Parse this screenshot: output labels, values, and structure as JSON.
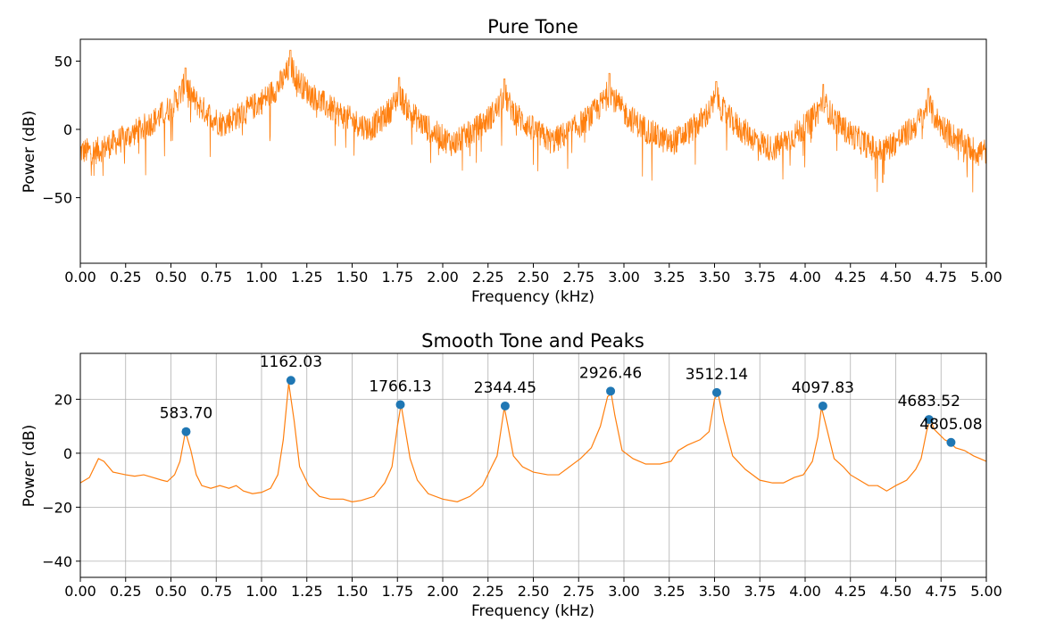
{
  "chart_data": [
    {
      "type": "line",
      "title": "Pure Tone",
      "xlabel": "Frequency (kHz)",
      "ylabel": "Power (dB)",
      "xlim": [
        0,
        5
      ],
      "ylim": [
        -98,
        66
      ],
      "xticks": [
        "0.00",
        "0.25",
        "0.50",
        "0.75",
        "1.00",
        "1.25",
        "1.50",
        "1.75",
        "2.00",
        "2.25",
        "2.50",
        "2.75",
        "3.00",
        "3.25",
        "3.50",
        "3.75",
        "4.00",
        "4.25",
        "4.50",
        "4.75",
        "5.00"
      ],
      "yticks": [
        50,
        0,
        -50
      ],
      "grid": false,
      "series_color": "#ff7f0e",
      "peaks": [
        {
          "x": 0.58,
          "y": 45
        },
        {
          "x": 1.16,
          "y": 58
        },
        {
          "x": 1.76,
          "y": 38
        },
        {
          "x": 2.34,
          "y": 37
        },
        {
          "x": 2.92,
          "y": 41
        },
        {
          "x": 3.51,
          "y": 35
        },
        {
          "x": 4.1,
          "y": 33
        },
        {
          "x": 4.68,
          "y": 30
        }
      ]
    },
    {
      "type": "line",
      "title": "Smooth Tone and Peaks",
      "xlabel": "Frequency (kHz)",
      "ylabel": "Power (dB)",
      "xlim": [
        0,
        5
      ],
      "ylim": [
        -46,
        37
      ],
      "xticks": [
        "0.00",
        "0.25",
        "0.50",
        "0.75",
        "1.00",
        "1.25",
        "1.50",
        "1.75",
        "2.00",
        "2.25",
        "2.50",
        "2.75",
        "3.00",
        "3.25",
        "3.50",
        "3.75",
        "4.00",
        "4.25",
        "4.50",
        "4.75",
        "5.00"
      ],
      "yticks": [
        20,
        0,
        -20,
        -40
      ],
      "grid": true,
      "series_color": "#ff7f0e",
      "marker_color": "#1f77b4",
      "curve": [
        [
          0.0,
          -11
        ],
        [
          0.05,
          -9
        ],
        [
          0.1,
          -2
        ],
        [
          0.13,
          -3
        ],
        [
          0.18,
          -7
        ],
        [
          0.25,
          -8
        ],
        [
          0.3,
          -8.5
        ],
        [
          0.35,
          -8
        ],
        [
          0.4,
          -9
        ],
        [
          0.45,
          -10
        ],
        [
          0.48,
          -10.5
        ],
        [
          0.52,
          -8
        ],
        [
          0.55,
          -3
        ],
        [
          0.58,
          8
        ],
        [
          0.61,
          1
        ],
        [
          0.64,
          -8
        ],
        [
          0.67,
          -12
        ],
        [
          0.72,
          -13
        ],
        [
          0.77,
          -12
        ],
        [
          0.82,
          -13
        ],
        [
          0.86,
          -12
        ],
        [
          0.9,
          -14
        ],
        [
          0.95,
          -15
        ],
        [
          1.0,
          -14.5
        ],
        [
          1.05,
          -13
        ],
        [
          1.09,
          -8
        ],
        [
          1.12,
          5
        ],
        [
          1.15,
          26
        ],
        [
          1.18,
          12
        ],
        [
          1.21,
          -5
        ],
        [
          1.26,
          -12
        ],
        [
          1.32,
          -16
        ],
        [
          1.38,
          -17
        ],
        [
          1.45,
          -17
        ],
        [
          1.5,
          -18
        ],
        [
          1.55,
          -17.5
        ],
        [
          1.62,
          -16
        ],
        [
          1.68,
          -11
        ],
        [
          1.72,
          -5
        ],
        [
          1.75,
          10
        ],
        [
          1.77,
          18
        ],
        [
          1.79,
          10
        ],
        [
          1.82,
          -2
        ],
        [
          1.86,
          -10
        ],
        [
          1.92,
          -15
        ],
        [
          2.0,
          -17
        ],
        [
          2.08,
          -18
        ],
        [
          2.15,
          -16
        ],
        [
          2.22,
          -12
        ],
        [
          2.27,
          -5
        ],
        [
          2.3,
          -1
        ],
        [
          2.32,
          8
        ],
        [
          2.34,
          17
        ],
        [
          2.36,
          10
        ],
        [
          2.39,
          -1
        ],
        [
          2.44,
          -5
        ],
        [
          2.5,
          -7
        ],
        [
          2.58,
          -8
        ],
        [
          2.64,
          -8
        ],
        [
          2.7,
          -5
        ],
        [
          2.76,
          -2
        ],
        [
          2.82,
          2
        ],
        [
          2.87,
          10
        ],
        [
          2.91,
          21
        ],
        [
          2.93,
          22
        ],
        [
          2.95,
          14
        ],
        [
          2.99,
          1
        ],
        [
          3.05,
          -2
        ],
        [
          3.12,
          -4
        ],
        [
          3.2,
          -4
        ],
        [
          3.26,
          -3
        ],
        [
          3.3,
          1
        ],
        [
          3.35,
          3
        ],
        [
          3.42,
          5
        ],
        [
          3.47,
          8
        ],
        [
          3.5,
          20
        ],
        [
          3.52,
          22
        ],
        [
          3.55,
          12
        ],
        [
          3.6,
          -1
        ],
        [
          3.67,
          -6
        ],
        [
          3.75,
          -10
        ],
        [
          3.82,
          -11
        ],
        [
          3.88,
          -11
        ],
        [
          3.94,
          -9
        ],
        [
          3.99,
          -8
        ],
        [
          4.04,
          -3
        ],
        [
          4.07,
          6
        ],
        [
          4.09,
          17
        ],
        [
          4.12,
          9
        ],
        [
          4.16,
          -2
        ],
        [
          4.21,
          -5
        ],
        [
          4.25,
          -8
        ],
        [
          4.3,
          -10
        ],
        [
          4.35,
          -12
        ],
        [
          4.4,
          -12
        ],
        [
          4.45,
          -14
        ],
        [
          4.5,
          -12
        ],
        [
          4.56,
          -10
        ],
        [
          4.61,
          -6
        ],
        [
          4.64,
          -2
        ],
        [
          4.67,
          8
        ],
        [
          4.69,
          13
        ],
        [
          4.71,
          9
        ],
        [
          4.74,
          7
        ],
        [
          4.77,
          5
        ],
        [
          4.8,
          4
        ],
        [
          4.83,
          2
        ],
        [
          4.88,
          1
        ],
        [
          4.93,
          -1
        ],
        [
          5.0,
          -3
        ]
      ],
      "peaks": [
        {
          "x": 0.5837,
          "y": 8,
          "label": "583.70"
        },
        {
          "x": 1.16203,
          "y": 27,
          "label": "1162.03"
        },
        {
          "x": 1.76613,
          "y": 18,
          "label": "1766.13"
        },
        {
          "x": 2.34445,
          "y": 17.5,
          "label": "2344.45"
        },
        {
          "x": 2.92646,
          "y": 23,
          "label": "2926.46"
        },
        {
          "x": 3.51214,
          "y": 22.5,
          "label": "3512.14"
        },
        {
          "x": 4.09783,
          "y": 17.5,
          "label": "4097.83"
        },
        {
          "x": 4.68352,
          "y": 12.5,
          "label": "4683.52"
        },
        {
          "x": 4.80508,
          "y": 4,
          "label": "4805.08"
        }
      ]
    }
  ]
}
